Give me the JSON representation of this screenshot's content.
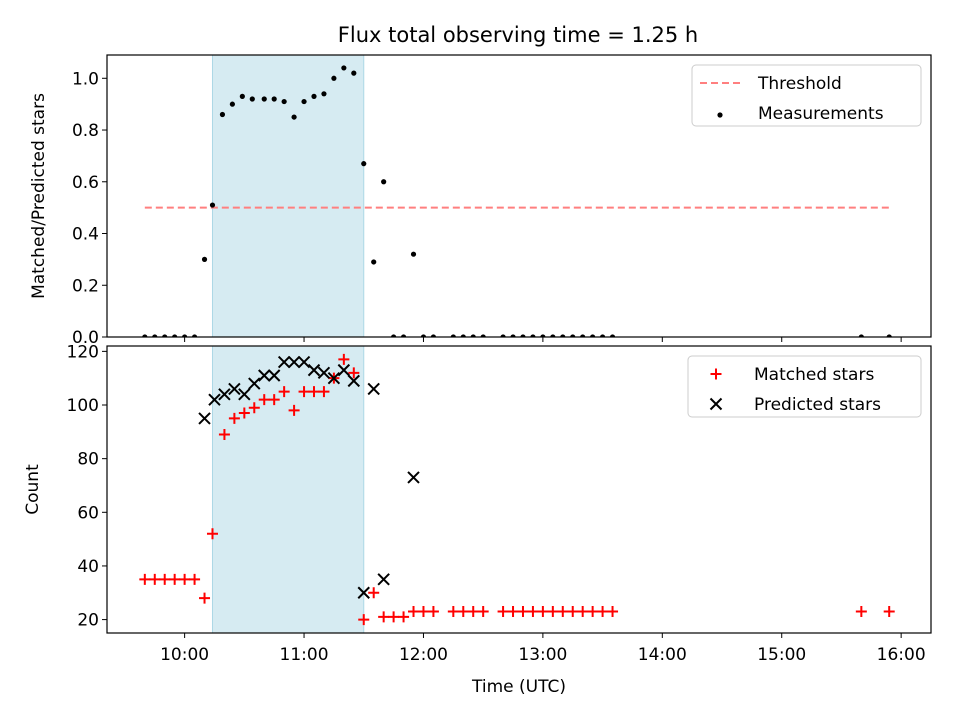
{
  "title": "Flux total observing time = 1.25 h",
  "colors": {
    "threshold": "#ff7f7f",
    "measurements": "#000000",
    "matched": "#ff0000",
    "predicted": "#000000",
    "window": "#add8e6"
  },
  "chart_data": [
    {
      "type": "scatter",
      "ylabel": "Matched/Predicted stars",
      "xlim": [
        "09:21",
        "16:15"
      ],
      "ylim": [
        0,
        1.09
      ],
      "yticks": [
        "0.0",
        "0.2",
        "0.4",
        "0.6",
        "0.8",
        "1.0"
      ],
      "legend_position": "top-right",
      "grid": false,
      "highlight_window": [
        "10:14",
        "11:30"
      ],
      "threshold": {
        "name": "Threshold",
        "x": [
          "09:40",
          "15:54"
        ],
        "y": 0.5
      },
      "series": [
        {
          "name": "Measurements",
          "marker": "dot",
          "points": [
            [
              "09:40",
              0.0
            ],
            [
              "09:45",
              0.0
            ],
            [
              "09:50",
              0.0
            ],
            [
              "09:55",
              0.0
            ],
            [
              "10:00",
              0.0
            ],
            [
              "10:05",
              0.0
            ],
            [
              "10:10",
              0.3
            ],
            [
              "10:14",
              0.51
            ],
            [
              "10:19",
              0.86
            ],
            [
              "10:24",
              0.9
            ],
            [
              "10:29",
              0.93
            ],
            [
              "10:34",
              0.92
            ],
            [
              "10:40",
              0.92
            ],
            [
              "10:45",
              0.92
            ],
            [
              "10:50",
              0.91
            ],
            [
              "10:55",
              0.85
            ],
            [
              "11:00",
              0.91
            ],
            [
              "11:05",
              0.93
            ],
            [
              "11:10",
              0.94
            ],
            [
              "11:15",
              1.0
            ],
            [
              "11:20",
              1.04
            ],
            [
              "11:25",
              1.02
            ],
            [
              "11:30",
              0.67
            ],
            [
              "11:35",
              0.29
            ],
            [
              "11:40",
              0.6
            ],
            [
              "11:45",
              0.0
            ],
            [
              "11:50",
              0.0
            ],
            [
              "11:55",
              0.32
            ],
            [
              "12:00",
              0.0
            ],
            [
              "12:05",
              0.0
            ],
            [
              "12:15",
              0.0
            ],
            [
              "12:20",
              0.0
            ],
            [
              "12:25",
              0.0
            ],
            [
              "12:30",
              0.0
            ],
            [
              "12:40",
              0.0
            ],
            [
              "12:45",
              0.0
            ],
            [
              "12:50",
              0.0
            ],
            [
              "12:55",
              0.0
            ],
            [
              "13:00",
              0.0
            ],
            [
              "13:05",
              0.0
            ],
            [
              "13:10",
              0.0
            ],
            [
              "13:15",
              0.0
            ],
            [
              "13:20",
              0.0
            ],
            [
              "13:25",
              0.0
            ],
            [
              "13:30",
              0.0
            ],
            [
              "13:35",
              0.0
            ],
            [
              "15:40",
              0.0
            ],
            [
              "15:54",
              0.0
            ]
          ]
        }
      ]
    },
    {
      "type": "scatter",
      "xlabel": "Time (UTC)",
      "ylabel": "Count",
      "xlim": [
        "09:21",
        "16:15"
      ],
      "ylim": [
        15,
        122
      ],
      "xticks": [
        "10:00",
        "11:00",
        "12:00",
        "13:00",
        "14:00",
        "15:00",
        "16:00"
      ],
      "yticks": [
        "20",
        "40",
        "60",
        "80",
        "100",
        "120"
      ],
      "legend_position": "top-right",
      "grid": false,
      "highlight_window": [
        "10:14",
        "11:30"
      ],
      "series": [
        {
          "name": "Matched stars",
          "marker": "plus",
          "points": [
            [
              "09:40",
              35
            ],
            [
              "09:45",
              35
            ],
            [
              "09:50",
              35
            ],
            [
              "09:55",
              35
            ],
            [
              "10:00",
              35
            ],
            [
              "10:05",
              35
            ],
            [
              "10:10",
              28
            ],
            [
              "10:14",
              52
            ],
            [
              "10:20",
              89
            ],
            [
              "10:25",
              95
            ],
            [
              "10:30",
              97
            ],
            [
              "10:35",
              99
            ],
            [
              "10:40",
              102
            ],
            [
              "10:45",
              102
            ],
            [
              "10:50",
              105
            ],
            [
              "10:55",
              98
            ],
            [
              "11:00",
              105
            ],
            [
              "11:05",
              105
            ],
            [
              "11:10",
              105
            ],
            [
              "11:15",
              110
            ],
            [
              "11:20",
              117
            ],
            [
              "11:25",
              112
            ],
            [
              "11:30",
              20
            ],
            [
              "11:35",
              30
            ],
            [
              "11:40",
              21
            ],
            [
              "11:45",
              21
            ],
            [
              "11:50",
              21
            ],
            [
              "11:55",
              23
            ],
            [
              "12:00",
              23
            ],
            [
              "12:05",
              23
            ],
            [
              "12:15",
              23
            ],
            [
              "12:20",
              23
            ],
            [
              "12:25",
              23
            ],
            [
              "12:30",
              23
            ],
            [
              "12:40",
              23
            ],
            [
              "12:45",
              23
            ],
            [
              "12:50",
              23
            ],
            [
              "12:55",
              23
            ],
            [
              "13:00",
              23
            ],
            [
              "13:05",
              23
            ],
            [
              "13:10",
              23
            ],
            [
              "13:15",
              23
            ],
            [
              "13:20",
              23
            ],
            [
              "13:25",
              23
            ],
            [
              "13:30",
              23
            ],
            [
              "13:35",
              23
            ],
            [
              "15:40",
              23
            ],
            [
              "15:54",
              23
            ]
          ]
        },
        {
          "name": "Predicted stars",
          "marker": "x",
          "points": [
            [
              "10:10",
              95
            ],
            [
              "10:15",
              102
            ],
            [
              "10:20",
              104
            ],
            [
              "10:25",
              106
            ],
            [
              "10:30",
              104
            ],
            [
              "10:35",
              108
            ],
            [
              "10:40",
              111
            ],
            [
              "10:45",
              111
            ],
            [
              "10:50",
              116
            ],
            [
              "10:55",
              116
            ],
            [
              "11:00",
              116
            ],
            [
              "11:05",
              113
            ],
            [
              "11:10",
              112
            ],
            [
              "11:15",
              110
            ],
            [
              "11:20",
              113
            ],
            [
              "11:25",
              109
            ],
            [
              "11:30",
              30
            ],
            [
              "11:35",
              106
            ],
            [
              "11:40",
              35
            ],
            [
              "11:55",
              73
            ]
          ]
        }
      ]
    }
  ]
}
